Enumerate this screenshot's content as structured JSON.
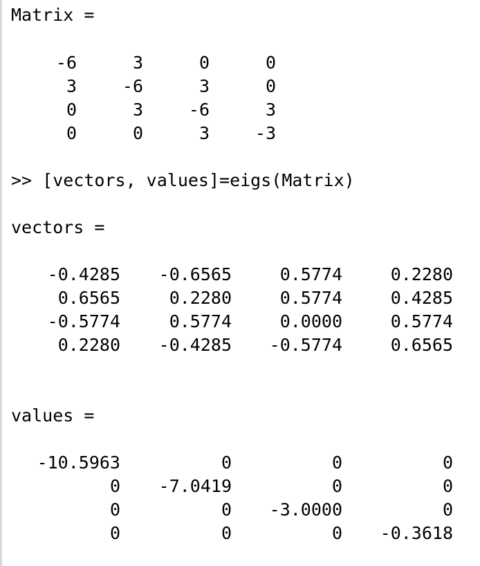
{
  "console": {
    "matrix_header": "Matrix =",
    "matrix_rows": [
      [
        "-6",
        "3",
        "0",
        "0"
      ],
      [
        "3",
        "-6",
        "3",
        "0"
      ],
      [
        "0",
        "3",
        "-6",
        "3"
      ],
      [
        "0",
        "0",
        "3",
        "-3"
      ]
    ],
    "command": ">> [vectors, values]=eigs(Matrix)",
    "vectors_header": "vectors =",
    "vectors_rows": [
      [
        "-0.4285",
        "-0.6565",
        "0.5774",
        "0.2280"
      ],
      [
        "0.6565",
        "0.2280",
        "0.5774",
        "0.4285"
      ],
      [
        "-0.5774",
        "0.5774",
        "0.0000",
        "0.5774"
      ],
      [
        "0.2280",
        "-0.4285",
        "-0.5774",
        "0.6565"
      ]
    ],
    "values_header": "values =",
    "values_rows": [
      [
        "-10.5963",
        "0",
        "0",
        "0"
      ],
      [
        "0",
        "-7.0419",
        "0",
        "0"
      ],
      [
        "0",
        "0",
        "-3.0000",
        "0"
      ],
      [
        "0",
        "0",
        "0",
        "-0.3618"
      ]
    ]
  }
}
